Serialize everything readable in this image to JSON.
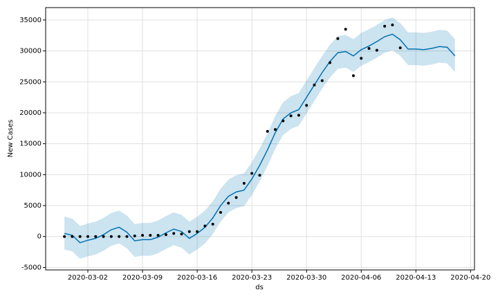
{
  "chart_data": {
    "type": "line",
    "xlabel": "ds",
    "ylabel": "New Cases",
    "x": [
      "2020-02-28",
      "2020-02-29",
      "2020-03-01",
      "2020-03-02",
      "2020-03-03",
      "2020-03-04",
      "2020-03-05",
      "2020-03-06",
      "2020-03-07",
      "2020-03-08",
      "2020-03-09",
      "2020-03-10",
      "2020-03-11",
      "2020-03-12",
      "2020-03-13",
      "2020-03-14",
      "2020-03-15",
      "2020-03-16",
      "2020-03-17",
      "2020-03-18",
      "2020-03-19",
      "2020-03-20",
      "2020-03-21",
      "2020-03-22",
      "2020-03-23",
      "2020-03-24",
      "2020-03-25",
      "2020-03-26",
      "2020-03-27",
      "2020-03-28",
      "2020-03-29",
      "2020-03-30",
      "2020-03-31",
      "2020-04-01",
      "2020-04-02",
      "2020-04-03",
      "2020-04-04",
      "2020-04-05",
      "2020-04-06",
      "2020-04-07",
      "2020-04-08",
      "2020-04-09",
      "2020-04-10",
      "2020-04-11",
      "2020-04-12",
      "2020-04-13",
      "2020-04-14",
      "2020-04-15",
      "2020-04-16",
      "2020-04-17",
      "2020-04-18"
    ],
    "series": [
      {
        "type": "band",
        "color": "#0072b2",
        "upper": [
          3200,
          2900,
          1700,
          2100,
          2400,
          3000,
          3800,
          4200,
          3400,
          2000,
          2200,
          2200,
          2600,
          3300,
          3900,
          3500,
          2400,
          3200,
          4200,
          5700,
          7700,
          9200,
          9900,
          10200,
          12000,
          14200,
          16700,
          19500,
          21700,
          22700,
          23200,
          25200,
          27200,
          29200,
          31000,
          32400,
          32600,
          31900,
          32900,
          33500,
          34200,
          35000,
          35400,
          34500,
          33000,
          33000,
          32900,
          33100,
          33400,
          33300,
          31900
        ],
        "lower": [
          -2100,
          -2400,
          -3600,
          -3200,
          -2900,
          -2300,
          -1500,
          -1100,
          -1900,
          -3300,
          -3100,
          -3100,
          -2700,
          -2000,
          -1400,
          -1800,
          -2900,
          -2100,
          -1100,
          400,
          2400,
          3900,
          4600,
          4900,
          6700,
          8900,
          11400,
          14200,
          16400,
          17400,
          17900,
          19900,
          21900,
          23900,
          25700,
          27100,
          27300,
          26600,
          27600,
          28200,
          28900,
          29700,
          30100,
          29200,
          27700,
          27700,
          27600,
          27800,
          28100,
          28000,
          26600
        ]
      },
      {
        "type": "line",
        "color": "#0072b2",
        "values": [
          500,
          200,
          -1000,
          -600,
          -300,
          300,
          1100,
          1500,
          700,
          -700,
          -500,
          -500,
          -100,
          600,
          1200,
          800,
          -300,
          500,
          1500,
          3000,
          5000,
          6500,
          7200,
          7500,
          9300,
          11500,
          14000,
          16800,
          19000,
          20000,
          20500,
          22500,
          24500,
          26500,
          28300,
          29700,
          29900,
          29200,
          30200,
          30800,
          31500,
          32300,
          32700,
          31800,
          30300,
          30300,
          30200,
          30400,
          30700,
          30600,
          29200
        ]
      },
      {
        "type": "scatter",
        "color": "#000000",
        "values": [
          0,
          0,
          0,
          0,
          0,
          0,
          0,
          0,
          0,
          100,
          200,
          200,
          200,
          300,
          500,
          400,
          800,
          800,
          1700,
          2000,
          3900,
          5400,
          6300,
          8600,
          10200,
          9900,
          17000,
          17300,
          18700,
          19500,
          19600,
          21200,
          24500,
          25200,
          28100,
          32000,
          33500,
          26000,
          28800,
          30400,
          30100,
          34000,
          34200,
          30500,
          null,
          null,
          null,
          null,
          null,
          null,
          null
        ]
      }
    ],
    "xlim": [
      "2020-02-25T14:24:00Z",
      "2020-04-20T12:00:00Z"
    ],
    "xticks": [
      "2020-03-02",
      "2020-03-09",
      "2020-03-16",
      "2020-03-23",
      "2020-03-30",
      "2020-04-06",
      "2020-04-13",
      "2020-04-20"
    ],
    "ylim": [
      -5400,
      37000
    ],
    "yticks": [
      -5000,
      0,
      5000,
      10000,
      15000,
      20000,
      25000,
      30000,
      35000
    ],
    "grid": true
  }
}
